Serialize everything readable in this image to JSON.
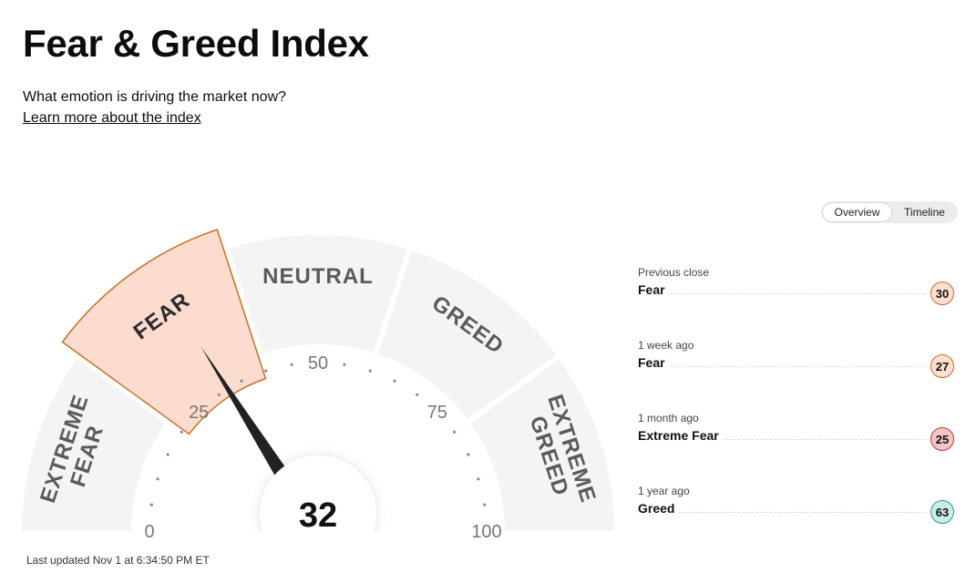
{
  "header": {
    "title": "Fear & Greed Index",
    "subtitle": "What emotion is driving the market now?",
    "learn_more": "Learn more about the index"
  },
  "toggle": {
    "overview": "Overview",
    "timeline": "Timeline"
  },
  "gauge": {
    "value": 32,
    "value_label": "32",
    "active_segment": "FEAR",
    "segments": [
      {
        "label_lines": [
          "EXTREME",
          "FEAR"
        ]
      },
      {
        "label_lines": [
          "FEAR"
        ]
      },
      {
        "label_lines": [
          "NEUTRAL"
        ]
      },
      {
        "label_lines": [
          "GREED"
        ]
      },
      {
        "label_lines": [
          "EXTREME",
          "GREED"
        ]
      }
    ],
    "scale_labels": [
      "0",
      "25",
      "50",
      "75",
      "100"
    ],
    "colors": {
      "segment": "#f4f4f4",
      "active_fill": "#fddcd0",
      "active_border": "#c8701e",
      "needle": "#222222",
      "label": "#5a5a5a"
    }
  },
  "last_updated": "Last updated Nov 1 at 6:34:50 PM ET",
  "history": [
    {
      "when": "Previous close",
      "rating": "Fear",
      "score": "30",
      "kind": "fear"
    },
    {
      "when": "1 week ago",
      "rating": "Fear",
      "score": "27",
      "kind": "fear"
    },
    {
      "when": "1 month ago",
      "rating": "Extreme Fear",
      "score": "25",
      "kind": "extreme-fear"
    },
    {
      "when": "1 year ago",
      "rating": "Greed",
      "score": "63",
      "kind": "greed"
    }
  ]
}
